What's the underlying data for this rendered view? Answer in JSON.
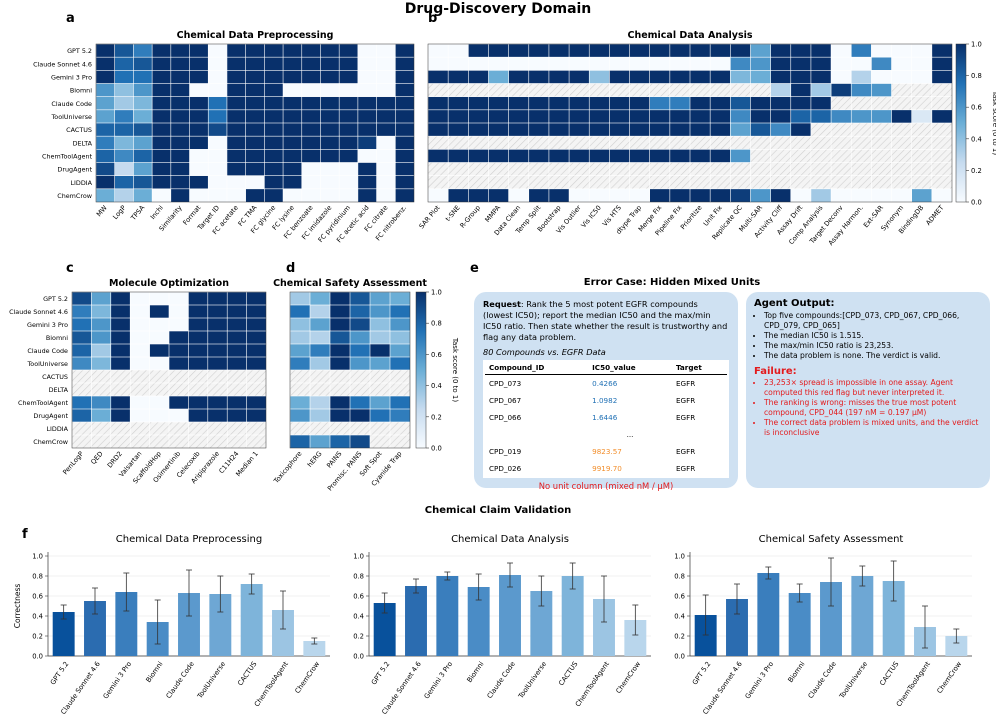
{
  "figure_title": "Drug-Discovery Domain",
  "colors": {
    "heat_low": "#f7fbff",
    "heat_high": "#08306b",
    "hatch": "#d9d9d9",
    "red": "#e31a1c",
    "orange": "#f28e2b",
    "bubble": "#cfe1f2"
  },
  "colorbar": {
    "label": "Task score (0 to 1)",
    "ticks": [
      "0.0",
      "0.2",
      "0.4",
      "0.6",
      "0.8",
      "1.0"
    ]
  },
  "agents12": [
    "GPT 5.2",
    "Claude Sonnet 4.6",
    "Gemini 3 Pro",
    "Biomni",
    "Claude Code",
    "ToolUniverse",
    "CACTUS",
    "DELTA",
    "ChemToolAgent",
    "DrugAgent",
    "LIDDIA",
    "ChemCrow"
  ],
  "panel_e": {
    "letter": "e",
    "title": "Error Case: Hidden Mixed Units",
    "request_label": "Request",
    "request_text": ": Rank the 5 most potent EGFR compounds (lowest IC50); report the median IC50 and the max/min IC50 ratio. Then state whether the result is trustworthy and flag any data problem.",
    "table_caption": "80 Compounds vs. EGFR Data",
    "table_headers": [
      "Compound_ID",
      "IC50_value",
      "Target"
    ],
    "table_rows": [
      [
        "CPD_073",
        "0.4266",
        "EGFR"
      ],
      [
        "CPD_067",
        "1.0982",
        "EGFR"
      ],
      [
        "CPD_066",
        "1.6446",
        "EGFR"
      ],
      [
        "",
        "...",
        ""
      ],
      [
        "CPD_019",
        "9823.57",
        "EGFR"
      ],
      [
        "CPD_026",
        "9919.70",
        "EGFR"
      ]
    ],
    "table_note": "No unit column (mixed nM / µM)",
    "agent_output_title": "Agent Output:",
    "agent_output_items": [
      "Top five compounds:[CPD_073, CPD_067, CPD_066, CPD_079, CPD_065]",
      "The median IC50 is 1.515.",
      "The max/min IC50 ratio is 23,253.",
      "The data problem is none. The verdict is valid."
    ],
    "failure_title": "Failure:",
    "failure_items": [
      "23,253× spread is impossible in one assay. Agent computed this red flag but never interpreted it.",
      "The ranking is wrong: misses the true most potent compound, CPD_044 (197 nM = 0.197 µM)",
      "The correct data problem is mixed units, and the verdict is inconclusive"
    ]
  },
  "section_f_title": "Chemical Claim Validation",
  "chart_data": [
    {
      "type": "heatmap",
      "letter": "a",
      "title": "Chemical Data Preprocessing",
      "rows": [
        "GPT 5.2",
        "Claude Sonnet 4.6",
        "Gemini 3 Pro",
        "Biomni",
        "Claude Code",
        "ToolUniverse",
        "CACTUS",
        "DELTA",
        "ChemToolAgent",
        "DrugAgent",
        "LIDDIA",
        "ChemCrow"
      ],
      "columns": [
        "MW",
        "LogP",
        "TPSA",
        "Inchi",
        "Similarity",
        "Format",
        "Target ID",
        "FC acetate",
        "FC TMA",
        "FC glycine",
        "FC lysine",
        "FC benzoate",
        "FC imidazole",
        "FC pyridinium",
        "FC acetic acid",
        "FC citrate",
        "FC nitrobenz."
      ],
      "values": [
        [
          1,
          0.85,
          0.7,
          1,
          1,
          1,
          0,
          1,
          1,
          1,
          1,
          1,
          1,
          1,
          0,
          0,
          1
        ],
        [
          1,
          0.8,
          0.85,
          1,
          1,
          1,
          0,
          1,
          1,
          1,
          1,
          1,
          1,
          1,
          0,
          0,
          1
        ],
        [
          1,
          0.75,
          0.75,
          1,
          1,
          1,
          0,
          1,
          1,
          1,
          1,
          1,
          1,
          1,
          0,
          0,
          1
        ],
        [
          0.6,
          0.4,
          0.6,
          1,
          1,
          0,
          0,
          1,
          1,
          1,
          0,
          0,
          0,
          0,
          0,
          0,
          1
        ],
        [
          0.55,
          0.35,
          0.45,
          1,
          1,
          1,
          0.75,
          1,
          1,
          1,
          1,
          1,
          1,
          1,
          1,
          1,
          1
        ],
        [
          0.55,
          0.7,
          0.5,
          1,
          1,
          1,
          0.75,
          1,
          1,
          1,
          1,
          1,
          1,
          1,
          1,
          1,
          1
        ],
        [
          0.8,
          0.8,
          0.85,
          1,
          1,
          1,
          0.9,
          1,
          1,
          1,
          1,
          1,
          1,
          1,
          1,
          1,
          1
        ],
        [
          0.7,
          0.45,
          0.55,
          1,
          1,
          1,
          0,
          1,
          1,
          1,
          1,
          1,
          1,
          1,
          0.95,
          0,
          1
        ],
        [
          0.8,
          0.65,
          0.8,
          1,
          1,
          0,
          0,
          1,
          1,
          1,
          1,
          1,
          1,
          1,
          0,
          0,
          1
        ],
        [
          0.9,
          0.25,
          0.55,
          1,
          1,
          0,
          0,
          1,
          1,
          1,
          1,
          0,
          0,
          0,
          1,
          0,
          1
        ],
        [
          1,
          0.8,
          0.85,
          1,
          1,
          1,
          0,
          0,
          0,
          1,
          1,
          0,
          0,
          0,
          1,
          0,
          1
        ],
        [
          0.5,
          0.3,
          0.5,
          0,
          1,
          0,
          0,
          0,
          1,
          1,
          0,
          0,
          0,
          0,
          1,
          0,
          1
        ]
      ]
    },
    {
      "type": "heatmap",
      "letter": "b",
      "title": "Chemical Data Analysis",
      "rows": [
        "GPT 5.2",
        "Claude Sonnet 4.6",
        "Gemini 3 Pro",
        "Biomni",
        "Claude Code",
        "ToolUniverse",
        "CACTUS",
        "DELTA",
        "ChemToolAgent",
        "DrugAgent",
        "LIDDIA",
        "ChemCrow"
      ],
      "columns": [
        "SAR Plot",
        "t-SNE",
        "R-Group",
        "MMPA",
        "Data Clean",
        "Temp Split",
        "Bootstrap",
        "Vis Outlier",
        "Vis IC50",
        "Vis HTS",
        "dtype Trap",
        "Merge Fix",
        "Pipeline Fix",
        "Prioritize",
        "Unit Fix",
        "Replicate QC",
        "Multi-SAR",
        "Activity Cliff",
        "Assay Drift",
        "Comp Analysis",
        "Target Deconv",
        "Assay Harmon.",
        "Ext-SAR",
        "Synonym",
        "BindingDB",
        "ADMET"
      ],
      "values": [
        [
          0,
          0,
          1,
          1,
          1,
          1,
          1,
          1,
          1,
          1,
          1,
          1,
          1,
          1,
          1,
          1,
          0.55,
          1,
          1,
          1,
          0,
          0.7,
          0,
          0,
          0,
          1
        ],
        [
          0,
          0,
          0,
          0,
          0,
          0,
          0,
          0,
          0,
          0,
          0,
          0,
          0,
          0,
          0,
          0.65,
          0.6,
          1,
          1,
          1,
          0,
          0,
          0.65,
          0,
          0,
          1
        ],
        [
          1,
          1,
          1,
          0.5,
          1,
          1,
          1,
          1,
          0.4,
          1,
          1,
          1,
          1,
          1,
          1,
          0.45,
          0.5,
          1,
          1,
          1,
          0,
          0.3,
          0,
          0,
          0,
          1
        ],
        [
          null,
          null,
          null,
          null,
          null,
          null,
          null,
          null,
          null,
          null,
          null,
          null,
          null,
          null,
          null,
          null,
          null,
          0.3,
          1,
          0.35,
          0.95,
          0.65,
          0.6,
          null,
          null,
          null
        ],
        [
          1,
          1,
          1,
          1,
          1,
          1,
          1,
          1,
          1,
          1,
          1,
          0.7,
          0.7,
          1,
          1,
          0.85,
          1,
          1,
          1,
          1,
          null,
          null,
          null,
          null,
          null,
          null
        ],
        [
          1,
          1,
          1,
          1,
          1,
          1,
          1,
          1,
          1,
          1,
          1,
          1,
          1,
          1,
          1,
          0.65,
          1,
          1,
          0.8,
          0.8,
          0.65,
          0.6,
          0.6,
          1,
          0.15,
          1
        ],
        [
          1,
          1,
          1,
          1,
          1,
          1,
          1,
          1,
          1,
          1,
          1,
          1,
          1,
          1,
          1,
          0.55,
          0.85,
          0.65,
          1,
          null,
          null,
          null,
          null,
          null,
          null,
          null
        ],
        [
          null,
          null,
          null,
          null,
          null,
          null,
          null,
          null,
          null,
          null,
          null,
          null,
          null,
          null,
          null,
          null,
          null,
          null,
          null,
          null,
          null,
          null,
          null,
          null,
          null,
          null
        ],
        [
          1,
          1,
          1,
          1,
          1,
          1,
          1,
          1,
          1,
          1,
          1,
          1,
          1,
          1,
          1,
          0.6,
          null,
          null,
          null,
          null,
          null,
          null,
          null,
          null,
          null,
          null
        ],
        [
          null,
          null,
          null,
          null,
          null,
          null,
          null,
          null,
          null,
          null,
          null,
          null,
          null,
          null,
          null,
          null,
          null,
          null,
          null,
          null,
          null,
          null,
          null,
          null,
          null,
          null
        ],
        [
          null,
          null,
          null,
          null,
          null,
          null,
          null,
          null,
          null,
          null,
          null,
          null,
          null,
          null,
          null,
          null,
          null,
          null,
          null,
          null,
          null,
          null,
          null,
          null,
          null,
          null
        ],
        [
          0,
          1,
          1,
          1,
          0,
          1,
          1,
          0,
          0,
          0,
          0,
          1,
          1,
          1,
          1,
          0.95,
          0.6,
          1,
          0,
          0.35,
          0,
          0,
          0,
          0,
          0.55,
          0
        ]
      ]
    },
    {
      "type": "heatmap",
      "letter": "c",
      "title": "Molecule Optimization",
      "rows": [
        "GPT 5.2",
        "Claude Sonnet 4.6",
        "Gemini 3 Pro",
        "Biomni",
        "Claude Code",
        "ToolUniverse",
        "CACTUS",
        "DELTA",
        "ChemToolAgent",
        "DrugAgent",
        "LIDDIA",
        "ChemCrow"
      ],
      "columns": [
        "PenLogP",
        "QED",
        "DRD2",
        "Valsartan",
        "ScaffoldHop",
        "Osimertinib",
        "Celecoxib",
        "Aripiprazole",
        "C11H24",
        "Median 1"
      ],
      "values": [
        [
          0.9,
          0.55,
          1,
          0,
          0,
          0,
          1,
          1,
          1,
          1
        ],
        [
          0.7,
          0.45,
          1,
          0,
          1,
          0,
          1,
          1,
          1,
          1
        ],
        [
          0.75,
          0.6,
          1,
          0,
          0,
          0,
          1,
          1,
          1,
          1
        ],
        [
          0.85,
          0.6,
          1,
          0,
          0,
          1,
          1,
          1,
          1,
          1
        ],
        [
          0.8,
          0.35,
          1,
          0,
          1,
          1,
          1,
          1,
          1,
          1
        ],
        [
          0.65,
          0.45,
          1,
          0,
          0,
          1,
          1,
          1,
          1,
          1
        ],
        [
          null,
          null,
          null,
          null,
          null,
          null,
          null,
          null,
          null,
          null
        ],
        [
          null,
          null,
          null,
          null,
          null,
          null,
          null,
          null,
          null,
          null
        ],
        [
          0.75,
          0.65,
          1,
          0,
          0,
          1,
          1,
          1,
          1,
          1
        ],
        [
          0.8,
          0.5,
          1,
          0,
          0,
          0,
          1,
          1,
          1,
          1
        ],
        [
          null,
          null,
          null,
          null,
          null,
          null,
          null,
          null,
          null,
          null
        ],
        [
          null,
          null,
          null,
          null,
          null,
          null,
          null,
          null,
          null,
          null
        ]
      ]
    },
    {
      "type": "heatmap",
      "letter": "d",
      "title": "Chemical Safety Assessment",
      "rows": [
        "GPT 5.2",
        "Claude Sonnet 4.6",
        "Gemini 3 Pro",
        "Biomni",
        "Claude Code",
        "ToolUniverse",
        "CACTUS",
        "DELTA",
        "ChemToolAgent",
        "DrugAgent",
        "LIDDIA",
        "ChemCrow"
      ],
      "columns": [
        "Toxicophore",
        "hERG",
        "PAINS",
        "Promisc. PAINS",
        "Soft Spot",
        "Cyanide Trap"
      ],
      "values": [
        [
          0.35,
          0.5,
          1,
          0.85,
          0.55,
          0.5
        ],
        [
          0.75,
          0.3,
          1,
          0.8,
          0.6,
          0.75
        ],
        [
          0.4,
          0.55,
          1,
          0.9,
          0.4,
          0.6
        ],
        [
          0.35,
          0.3,
          0.85,
          0.6,
          0.35,
          0.4
        ],
        [
          0.55,
          0.7,
          1,
          0.75,
          1,
          0.55
        ],
        [
          0.7,
          0.35,
          1,
          0.6,
          0.55,
          0.75
        ],
        [
          null,
          null,
          null,
          null,
          null,
          null
        ],
        [
          null,
          null,
          null,
          null,
          null,
          null
        ],
        [
          0.5,
          0.3,
          1,
          0.75,
          0.55,
          0.75
        ],
        [
          0.6,
          0.35,
          1,
          1,
          0.75,
          0.7
        ],
        [
          null,
          null,
          null,
          null,
          null,
          null
        ],
        [
          0.8,
          0.55,
          0.8,
          0.9,
          null,
          null
        ]
      ]
    },
    {
      "type": "bar",
      "letter": "f",
      "title": "Chemical Data Preprocessing",
      "ylabel": "Correctness",
      "ylim": [
        0,
        1.0
      ],
      "yticks": [
        "0.0",
        "0.2",
        "0.4",
        "0.6",
        "0.8",
        "1.0"
      ],
      "categories": [
        "GPT 5.2",
        "Claude Sonnet 4.6",
        "Gemini 3 Pro",
        "Biomni",
        "Claude Code",
        "ToolUniverse",
        "CACTUS",
        "ChemToolAgent",
        "ChemCrow"
      ],
      "values": [
        0.44,
        0.55,
        0.64,
        0.34,
        0.63,
        0.62,
        0.72,
        0.46,
        0.15
      ],
      "errors": [
        0.07,
        0.13,
        0.19,
        0.22,
        0.23,
        0.18,
        0.1,
        0.19,
        0.03
      ]
    },
    {
      "type": "bar",
      "letter": "",
      "title": "Chemical Data Analysis",
      "ylabel": "",
      "ylim": [
        0,
        1.0
      ],
      "yticks": [
        "0.0",
        "0.2",
        "0.4",
        "0.6",
        "0.8",
        "1.0"
      ],
      "categories": [
        "GPT 5.2",
        "Claude Sonnet 4.6",
        "Gemini 3 Pro",
        "Biomni",
        "Claude Code",
        "ToolUniverse",
        "CACTUS",
        "ChemToolAgent",
        "ChemCrow"
      ],
      "values": [
        0.53,
        0.7,
        0.8,
        0.69,
        0.81,
        0.65,
        0.8,
        0.57,
        0.36
      ],
      "errors": [
        0.1,
        0.07,
        0.04,
        0.13,
        0.12,
        0.15,
        0.13,
        0.23,
        0.15
      ]
    },
    {
      "type": "bar",
      "letter": "",
      "title": "Chemical Safety Assessment",
      "ylabel": "",
      "ylim": [
        0,
        1.0
      ],
      "yticks": [
        "0.0",
        "0.2",
        "0.4",
        "0.6",
        "0.8",
        "1.0"
      ],
      "categories": [
        "GPT 5.2",
        "Claude Sonnet 4.6",
        "Gemini 3 Pro",
        "Biomni",
        "Claude Code",
        "ToolUniverse",
        "CACTUS",
        "ChemToolAgent",
        "ChemCrow"
      ],
      "values": [
        0.41,
        0.57,
        0.83,
        0.63,
        0.74,
        0.8,
        0.75,
        0.29,
        0.2
      ],
      "errors": [
        0.2,
        0.15,
        0.06,
        0.09,
        0.24,
        0.1,
        0.2,
        0.21,
        0.07
      ]
    }
  ]
}
